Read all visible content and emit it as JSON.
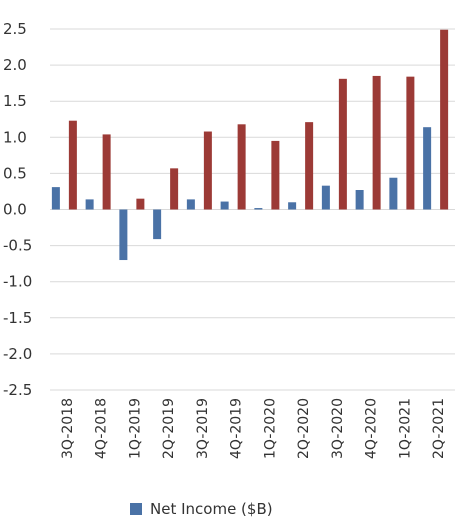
{
  "chart_data": {
    "type": "bar",
    "title": "",
    "xlabel": "",
    "ylabel": "",
    "categories": [
      "3Q-2018",
      "4Q-2018",
      "1Q-2019",
      "2Q-2019",
      "3Q-2019",
      "4Q-2019",
      "1Q-2020",
      "2Q-2020",
      "3Q-2020",
      "4Q-2020",
      "1Q-2021",
      "2Q-2021"
    ],
    "ylim": [
      -2.5,
      2.5
    ],
    "yticks": [
      "2.5",
      "2.0",
      "1.5",
      "1.0",
      "0.5",
      "0.0",
      "-0.5",
      "-1.0",
      "-1.5",
      "-2.0",
      "-2.5"
    ],
    "grid": true,
    "legend_position": "bottom",
    "series": [
      {
        "name": "Net Income ($B)",
        "color": "#4a72a6",
        "values": [
          0.31,
          0.14,
          -0.7,
          -0.41,
          0.14,
          0.11,
          0.02,
          0.1,
          0.33,
          0.27,
          0.44,
          1.14
        ]
      },
      {
        "name": "",
        "color": "#9c3a36",
        "values": [
          1.23,
          1.04,
          0.15,
          0.57,
          1.08,
          1.18,
          0.95,
          1.21,
          1.81,
          1.85,
          1.84,
          2.49
        ]
      }
    ]
  }
}
